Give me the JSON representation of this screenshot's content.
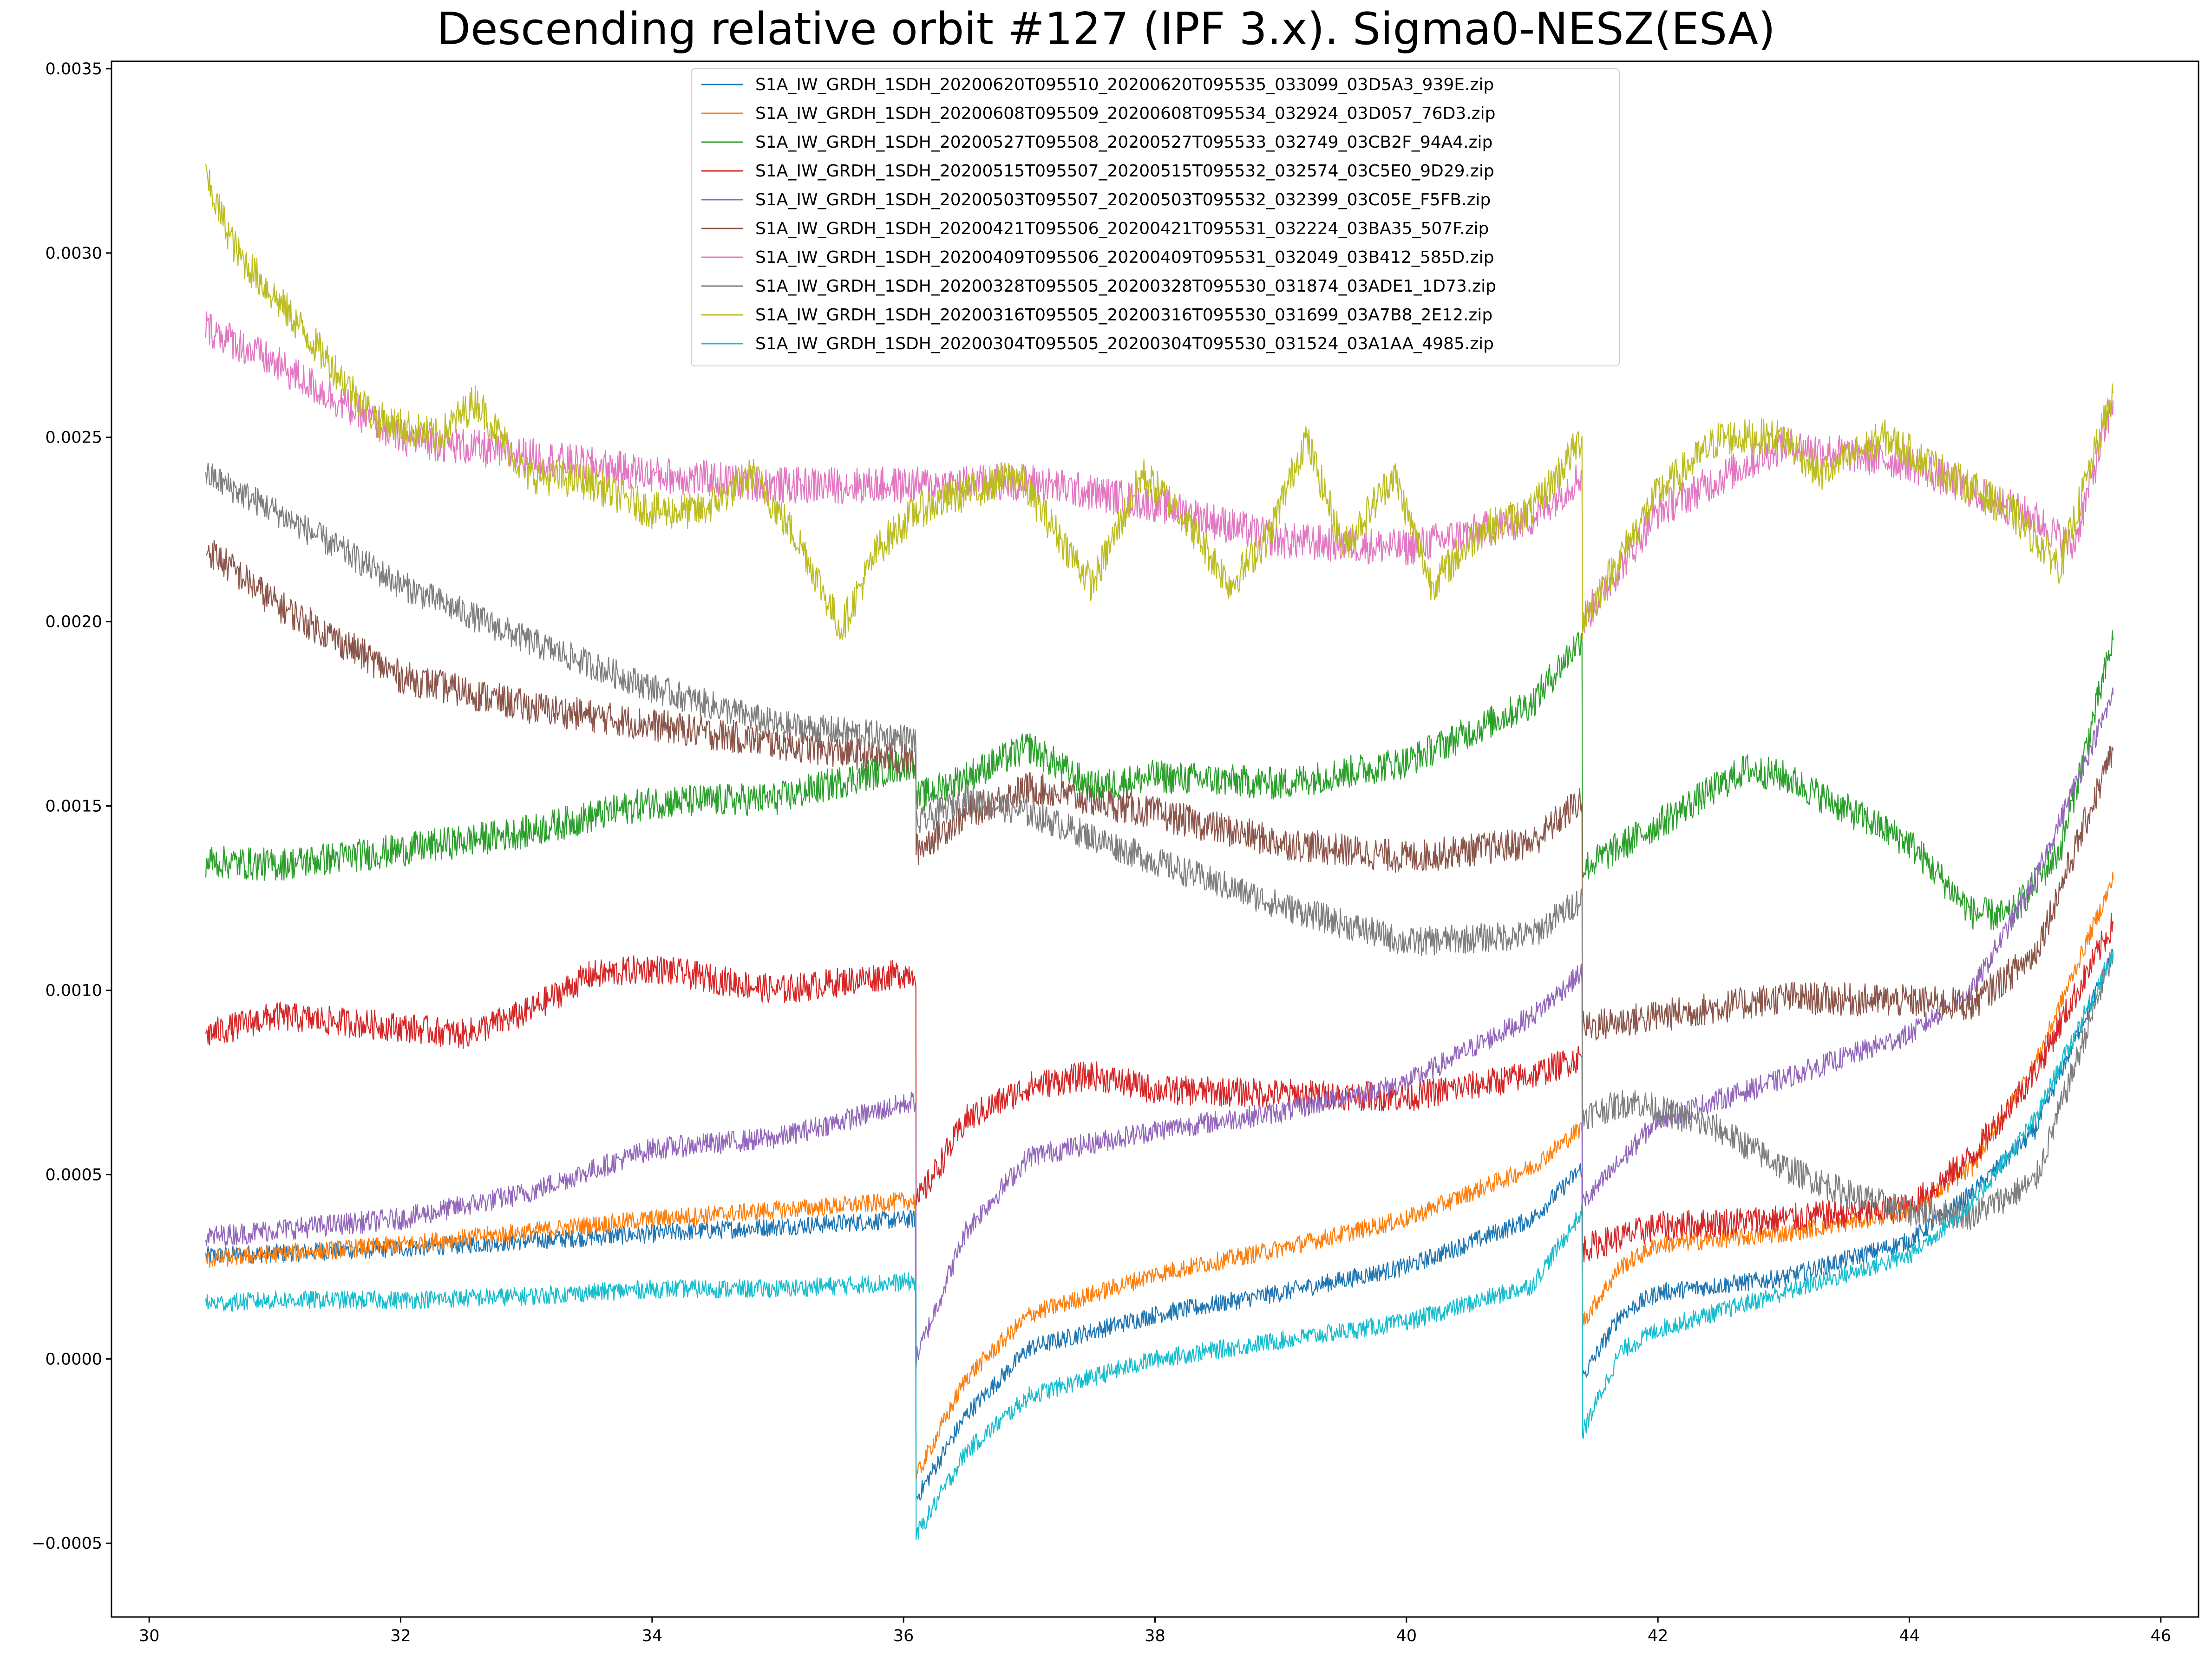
{
  "chart_data": {
    "type": "line",
    "title": "Descending relative orbit #127 (IPF 3.x). Sigma0-NESZ(ESA)",
    "xlabel": "",
    "ylabel": "",
    "xlim": [
      29.7,
      46.3
    ],
    "ylim": [
      -0.0007,
      0.00352
    ],
    "xticks": [
      30,
      32,
      34,
      36,
      38,
      40,
      42,
      44,
      46
    ],
    "xtick_labels": [
      "30",
      "32",
      "34",
      "36",
      "38",
      "40",
      "42",
      "44",
      "46"
    ],
    "yticks": [
      -0.0005,
      0.0,
      0.0005,
      0.001,
      0.0015,
      0.002,
      0.0025,
      0.003,
      0.0035
    ],
    "ytick_labels": [
      "−0.0005",
      "0.0000",
      "0.0005",
      "0.0010",
      "0.0015",
      "0.0020",
      "0.0025",
      "0.0030",
      "0.0035"
    ],
    "grid": false,
    "legend_position": "top-center",
    "x_range": [
      30.45,
      45.62
    ],
    "subswath_boundaries": [
      36.1,
      41.4
    ],
    "series": [
      {
        "name": "S1A_IW_GRDH_1SDH_20200620T095510_20200620T095535_033099_03D5A3_939E.zip",
        "color": "#1f77b4",
        "noise": 2.5e-05,
        "points": [
          [
            30.45,
            0.00028
          ],
          [
            32,
            0.0003
          ],
          [
            34,
            0.00034
          ],
          [
            36.1,
            0.00038
          ],
          [
            36.1,
            -0.00038
          ],
          [
            36.5,
            -0.00015
          ],
          [
            37,
            3e-05
          ],
          [
            38,
            0.00012
          ],
          [
            39,
            0.00018
          ],
          [
            40,
            0.00025
          ],
          [
            41,
            0.00038
          ],
          [
            41.4,
            0.00052
          ],
          [
            41.4,
            -5e-05
          ],
          [
            41.7,
            0.00012
          ],
          [
            42,
            0.00018
          ],
          [
            43,
            0.00022
          ],
          [
            44,
            0.00032
          ],
          [
            44.5,
            0.00045
          ],
          [
            45,
            0.00062
          ],
          [
            45.62,
            0.0011
          ]
        ]
      },
      {
        "name": "S1A_IW_GRDH_1SDH_20200608T095509_20200608T095534_032924_03D057_76D3.zip",
        "color": "#ff7f0e",
        "noise": 2.5e-05,
        "points": [
          [
            30.45,
            0.00027
          ],
          [
            32,
            0.00031
          ],
          [
            34,
            0.00038
          ],
          [
            36.1,
            0.00043
          ],
          [
            36.1,
            -0.00032
          ],
          [
            36.5,
            -5e-05
          ],
          [
            37,
            0.00012
          ],
          [
            38,
            0.00023
          ],
          [
            39,
            0.0003
          ],
          [
            40,
            0.00038
          ],
          [
            41,
            0.00052
          ],
          [
            41.4,
            0.00063
          ],
          [
            41.4,
            0.0001
          ],
          [
            41.7,
            0.00025
          ],
          [
            42,
            0.00031
          ],
          [
            43,
            0.00034
          ],
          [
            44,
            0.0004
          ],
          [
            44.5,
            0.00052
          ],
          [
            45,
            0.0008
          ],
          [
            45.62,
            0.0013
          ]
        ]
      },
      {
        "name": "S1A_IW_GRDH_1SDH_20200527T095508_20200527T095533_032749_03CB2F_94A4.zip",
        "color": "#2ca02c",
        "noise": 4.5e-05,
        "points": [
          [
            30.45,
            0.00135
          ],
          [
            31,
            0.00134
          ],
          [
            32,
            0.00138
          ],
          [
            33,
            0.00143
          ],
          [
            34,
            0.00151
          ],
          [
            35,
            0.00152
          ],
          [
            36.1,
            0.00162
          ],
          [
            36.1,
            0.00152
          ],
          [
            36.5,
            0.00158
          ],
          [
            37,
            0.00166
          ],
          [
            37.5,
            0.00155
          ],
          [
            38,
            0.00158
          ],
          [
            39,
            0.00156
          ],
          [
            40,
            0.00162
          ],
          [
            41,
            0.00178
          ],
          [
            41.4,
            0.00196
          ],
          [
            41.4,
            0.00133
          ],
          [
            42,
            0.00145
          ],
          [
            42.7,
            0.0016
          ],
          [
            43,
            0.00158
          ],
          [
            44,
            0.0014
          ],
          [
            44.5,
            0.00121
          ],
          [
            44.8,
            0.0012
          ],
          [
            45.2,
            0.00138
          ],
          [
            45.62,
            0.00195
          ]
        ]
      },
      {
        "name": "S1A_IW_GRDH_1SDH_20200515T095507_20200515T095532_032574_03C5E0_9D29.zip",
        "color": "#d62728",
        "noise": 4e-05,
        "points": [
          [
            30.45,
            0.00088
          ],
          [
            31,
            0.00093
          ],
          [
            32,
            0.0009
          ],
          [
            32.5,
            0.00088
          ],
          [
            33,
            0.00094
          ],
          [
            33.5,
            0.00104
          ],
          [
            34,
            0.00106
          ],
          [
            35,
            0.001
          ],
          [
            36.1,
            0.00105
          ],
          [
            36.1,
            0.00042
          ],
          [
            36.5,
            0.00065
          ],
          [
            37,
            0.00074
          ],
          [
            37.5,
            0.00077
          ],
          [
            38,
            0.00073
          ],
          [
            39,
            0.00072
          ],
          [
            40,
            0.00071
          ],
          [
            41,
            0.00077
          ],
          [
            41.4,
            0.00082
          ],
          [
            41.4,
            0.0003
          ],
          [
            42,
            0.00036
          ],
          [
            43,
            0.00038
          ],
          [
            44,
            0.00041
          ],
          [
            44.5,
            0.00055
          ],
          [
            45,
            0.00078
          ],
          [
            45.62,
            0.00118
          ]
        ]
      },
      {
        "name": "S1A_IW_GRDH_1SDH_20200503T095507_20200503T095532_032399_03C05E_F5FB.zip",
        "color": "#9467bd",
        "noise": 3e-05,
        "points": [
          [
            30.45,
            0.00033
          ],
          [
            31,
            0.00035
          ],
          [
            32,
            0.00038
          ],
          [
            33,
            0.00045
          ],
          [
            34,
            0.00057
          ],
          [
            35,
            0.0006
          ],
          [
            36.1,
            0.0007
          ],
          [
            36.1,
            0.0
          ],
          [
            36.5,
            0.00035
          ],
          [
            37,
            0.00055
          ],
          [
            38,
            0.00062
          ],
          [
            39,
            0.00067
          ],
          [
            40,
            0.00075
          ],
          [
            41,
            0.00093
          ],
          [
            41.4,
            0.00105
          ],
          [
            41.4,
            0.00042
          ],
          [
            42,
            0.00065
          ],
          [
            43,
            0.00076
          ],
          [
            44,
            0.00088
          ],
          [
            44.5,
            0.001
          ],
          [
            45,
            0.0013
          ],
          [
            45.62,
            0.0018
          ]
        ]
      },
      {
        "name": "S1A_IW_GRDH_1SDH_20200421T095506_20200421T095531_032224_03BA35_507F.zip",
        "color": "#8c564b",
        "noise": 4.5e-05,
        "points": [
          [
            30.45,
            0.0022
          ],
          [
            31,
            0.00205
          ],
          [
            32,
            0.00185
          ],
          [
            33,
            0.00177
          ],
          [
            34,
            0.00172
          ],
          [
            35,
            0.00167
          ],
          [
            36.1,
            0.00162
          ],
          [
            36.1,
            0.00138
          ],
          [
            36.5,
            0.00148
          ],
          [
            37,
            0.00155
          ],
          [
            38,
            0.00148
          ],
          [
            39,
            0.0014
          ],
          [
            40,
            0.00136
          ],
          [
            41,
            0.0014
          ],
          [
            41.4,
            0.00152
          ],
          [
            41.4,
            0.0009
          ],
          [
            42,
            0.00093
          ],
          [
            43,
            0.00098
          ],
          [
            44,
            0.00097
          ],
          [
            44.5,
            0.00096
          ],
          [
            45,
            0.0011
          ],
          [
            45.62,
            0.00165
          ]
        ]
      },
      {
        "name": "S1A_IW_GRDH_1SDH_20200409T095506_20200409T095531_032049_03B412_585D.zip",
        "color": "#e377c2",
        "noise": 5e-05,
        "points": [
          [
            30.45,
            0.0028
          ],
          [
            31,
            0.0027
          ],
          [
            32,
            0.0025
          ],
          [
            33,
            0.00245
          ],
          [
            34,
            0.0024
          ],
          [
            35,
            0.00237
          ],
          [
            36.1,
            0.00237
          ],
          [
            37,
            0.00238
          ],
          [
            38,
            0.00232
          ],
          [
            39,
            0.00222
          ],
          [
            40,
            0.0022
          ],
          [
            41,
            0.00228
          ],
          [
            41.4,
            0.0024
          ],
          [
            41.4,
            0.002
          ],
          [
            42,
            0.0023
          ],
          [
            43,
            0.00248
          ],
          [
            44,
            0.00243
          ],
          [
            45,
            0.00228
          ],
          [
            45.3,
            0.0022
          ],
          [
            45.62,
            0.0026
          ]
        ]
      },
      {
        "name": "S1A_IW_GRDH_1SDH_20200328T095505_20200328T095530_031874_03ADE1_1D73.zip",
        "color": "#7f7f7f",
        "noise": 4e-05,
        "points": [
          [
            30.45,
            0.0024
          ],
          [
            31,
            0.0023
          ],
          [
            32,
            0.0021
          ],
          [
            33,
            0.00195
          ],
          [
            34,
            0.00182
          ],
          [
            35,
            0.00172
          ],
          [
            36.1,
            0.00168
          ],
          [
            36.1,
            0.00145
          ],
          [
            36.5,
            0.00152
          ],
          [
            37,
            0.00148
          ],
          [
            38,
            0.00135
          ],
          [
            39,
            0.00123
          ],
          [
            40,
            0.00113
          ],
          [
            41,
            0.00115
          ],
          [
            41.4,
            0.00125
          ],
          [
            41.4,
            0.00066
          ],
          [
            41.8,
            0.0007
          ],
          [
            42.5,
            0.00062
          ],
          [
            43,
            0.00052
          ],
          [
            43.5,
            0.00045
          ],
          [
            44,
            0.0004
          ],
          [
            44.5,
            0.00039
          ],
          [
            45,
            0.00048
          ],
          [
            45.62,
            0.0011
          ]
        ]
      },
      {
        "name": "S1A_IW_GRDH_1SDH_20200316T095505_20200316T095530_031699_03A7B8_2E12.zip",
        "color": "#bcbd22",
        "noise": 5e-05,
        "points": [
          [
            30.45,
            0.0032
          ],
          [
            30.7,
            0.003
          ],
          [
            31.2,
            0.0028
          ],
          [
            31.8,
            0.00255
          ],
          [
            32.3,
            0.0025
          ],
          [
            32.6,
            0.0026
          ],
          [
            33,
            0.0024
          ],
          [
            33.5,
            0.00238
          ],
          [
            34,
            0.0023
          ],
          [
            34.4,
            0.0023
          ],
          [
            34.8,
            0.0024
          ],
          [
            35.2,
            0.0022
          ],
          [
            35.5,
            0.00198
          ],
          [
            35.8,
            0.0022
          ],
          [
            36.1,
            0.0023
          ],
          [
            36.5,
            0.00235
          ],
          [
            36.9,
            0.0024
          ],
          [
            37.2,
            0.00225
          ],
          [
            37.5,
            0.0021
          ],
          [
            37.9,
            0.0024
          ],
          [
            38.2,
            0.0023
          ],
          [
            38.6,
            0.0021
          ],
          [
            38.9,
            0.00223
          ],
          [
            39.2,
            0.0025
          ],
          [
            39.5,
            0.0022
          ],
          [
            39.9,
            0.0024
          ],
          [
            40.2,
            0.0021
          ],
          [
            40.6,
            0.00225
          ],
          [
            41,
            0.0023
          ],
          [
            41.4,
            0.0025
          ],
          [
            41.4,
            0.002
          ],
          [
            42,
            0.00235
          ],
          [
            42.5,
            0.0025
          ],
          [
            43,
            0.0025
          ],
          [
            43.3,
            0.0024
          ],
          [
            43.8,
            0.0025
          ],
          [
            44.3,
            0.0024
          ],
          [
            44.8,
            0.0023
          ],
          [
            45.2,
            0.00215
          ],
          [
            45.62,
            0.00262
          ]
        ]
      },
      {
        "name": "S1A_IW_GRDH_1SDH_20200304T095505_20200304T095530_031524_03A1AA_4985.zip",
        "color": "#17becf",
        "noise": 2.5e-05,
        "points": [
          [
            30.45,
            0.00015
          ],
          [
            31,
            0.00016
          ],
          [
            32,
            0.00016
          ],
          [
            33,
            0.00017
          ],
          [
            34,
            0.00019
          ],
          [
            35,
            0.00019
          ],
          [
            36.1,
            0.00021
          ],
          [
            36.1,
            -0.00048
          ],
          [
            36.5,
            -0.00025
          ],
          [
            37,
            -0.0001
          ],
          [
            38,
            0.0
          ],
          [
            39,
            5e-05
          ],
          [
            40,
            0.0001
          ],
          [
            41,
            0.0002
          ],
          [
            41.4,
            0.0004
          ],
          [
            41.4,
            -0.0002
          ],
          [
            41.7,
            2e-05
          ],
          [
            42,
            8e-05
          ],
          [
            43,
            0.00018
          ],
          [
            44,
            0.00028
          ],
          [
            44.5,
            0.00042
          ],
          [
            45,
            0.00065
          ],
          [
            45.62,
            0.0011
          ]
        ]
      }
    ]
  }
}
